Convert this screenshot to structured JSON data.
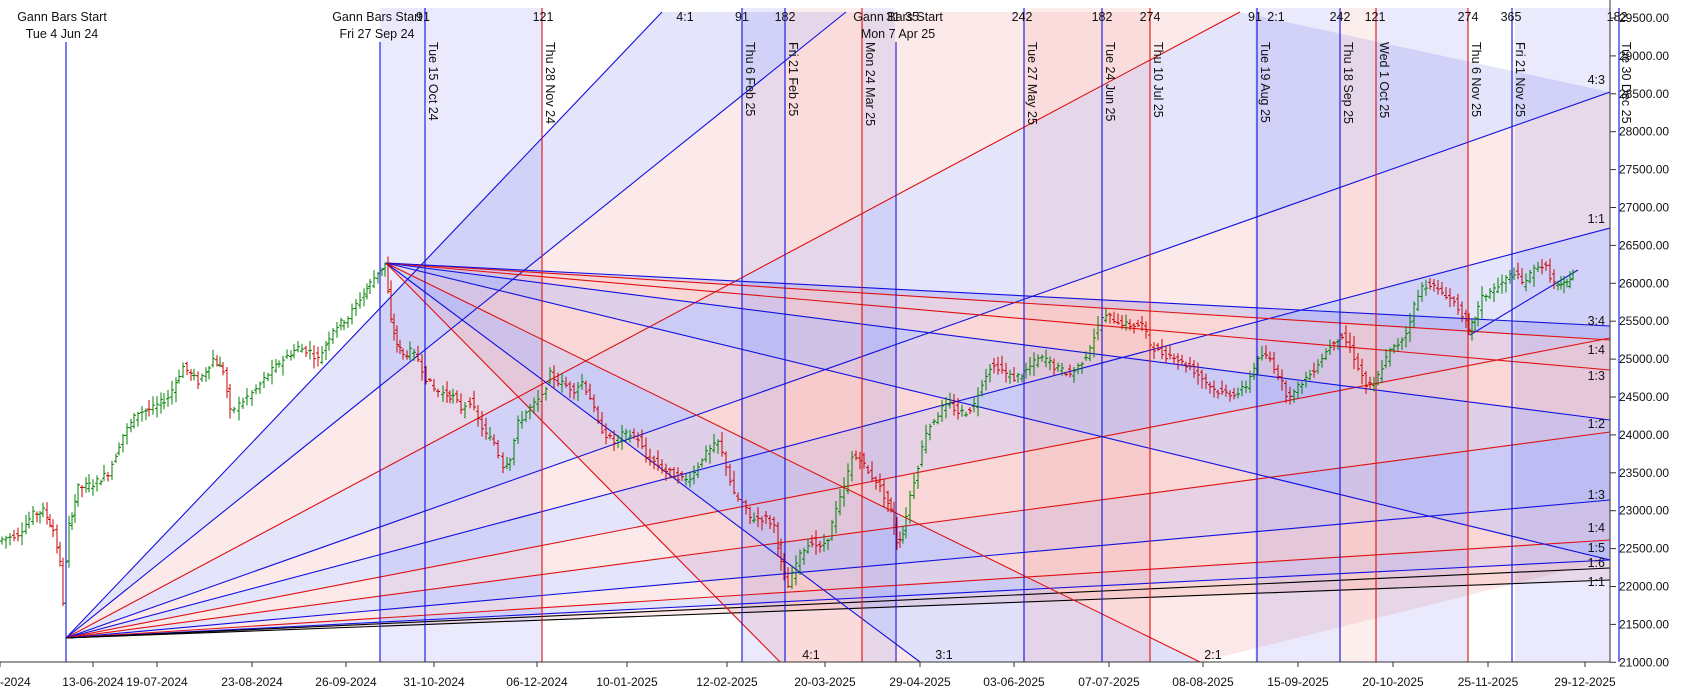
{
  "chart_data": {
    "type": "bar",
    "subtype": "ohlc-with-gann-fans",
    "x_axis_labels": [
      "-2024",
      "13-06-2024",
      "19-07-2024",
      "23-08-2024",
      "26-09-2024",
      "31-10-2024",
      "06-12-2024",
      "10-01-2025",
      "12-02-2025",
      "20-03-2025",
      "29-04-2025",
      "03-06-2025",
      "07-07-2025",
      "08-08-2025",
      "15-09-2025",
      "20-10-2025",
      "25-11-2025",
      "29-12-2025"
    ],
    "y_axis": {
      "ticks": [
        "29500.00",
        "29000.00",
        "28500.00",
        "28000.00",
        "27500.00",
        "27000.00",
        "26500.00",
        "26000.00",
        "25500.00",
        "25000.00",
        "24500.00",
        "24000.00",
        "23500.00",
        "23000.00",
        "22500.00",
        "22000.00",
        "21500.00",
        "21000.00"
      ],
      "ylim": [
        21000,
        29500
      ]
    },
    "gann_starts": [
      {
        "title": "Gann Bars Start",
        "date": "Tue 4 Jun 24"
      },
      {
        "title": "Gann Bars Start",
        "date": "Fri 27 Sep 24"
      },
      {
        "title": "Gann Bars Start",
        "date": "Mon 7 Apr 25"
      }
    ],
    "time_lines": [
      {
        "date": "Tue 15 Oct 24",
        "color": "#1010e0"
      },
      {
        "date": "Thu 28 Nov 24",
        "color": "#e01010"
      },
      {
        "date": "Thu 6 Feb 25",
        "color": "#1010e0"
      },
      {
        "date": "Fri 21 Feb 25",
        "color": "#1010e0"
      },
      {
        "date": "Mon 24 Mar 25",
        "color": "#e01010"
      },
      {
        "date": "Tue 27 May 25",
        "color": "#1010e0"
      },
      {
        "date": "Tue 24 Jun 25",
        "color": "#1010e0"
      },
      {
        "date": "Thu 10 Jul 25",
        "color": "#e01010"
      },
      {
        "date": "Tue 19 Aug 25",
        "color": "#1010e0"
      },
      {
        "date": "Thu 18 Sep 25",
        "color": "#1010e0"
      },
      {
        "date": "Wed 1 Oct 25",
        "color": "#e01010"
      },
      {
        "date": "Thu 6 Nov 25",
        "color": "#e01010"
      },
      {
        "date": "Fri 21 Nov 25",
        "color": "#1010e0"
      },
      {
        "date": "Tue 30 Dec 25",
        "color": "#1010e0"
      }
    ],
    "top_counts": [
      "91",
      "121",
      "4:1",
      "91",
      "182",
      "31",
      "35",
      "242",
      "182",
      "274",
      "91",
      "2:1",
      "242",
      "121",
      "274",
      "365",
      "182"
    ],
    "bottom_ratios": [
      "4:1",
      "3:1",
      "2:1"
    ],
    "right_ratios": [
      "4:3",
      "1:1",
      "3:4",
      "1:4",
      "1:3",
      "1:2",
      "1:3",
      "1:4",
      "1:5",
      "1:6",
      "1:1"
    ],
    "colors": {
      "blue": "#1010e0",
      "red": "#e01010",
      "black": "#000000",
      "up_bar": "#008000",
      "down_bar": "#cc0000",
      "blue_fill": "#6a6ae8",
      "red_fill": "#ef8a8a"
    }
  }
}
